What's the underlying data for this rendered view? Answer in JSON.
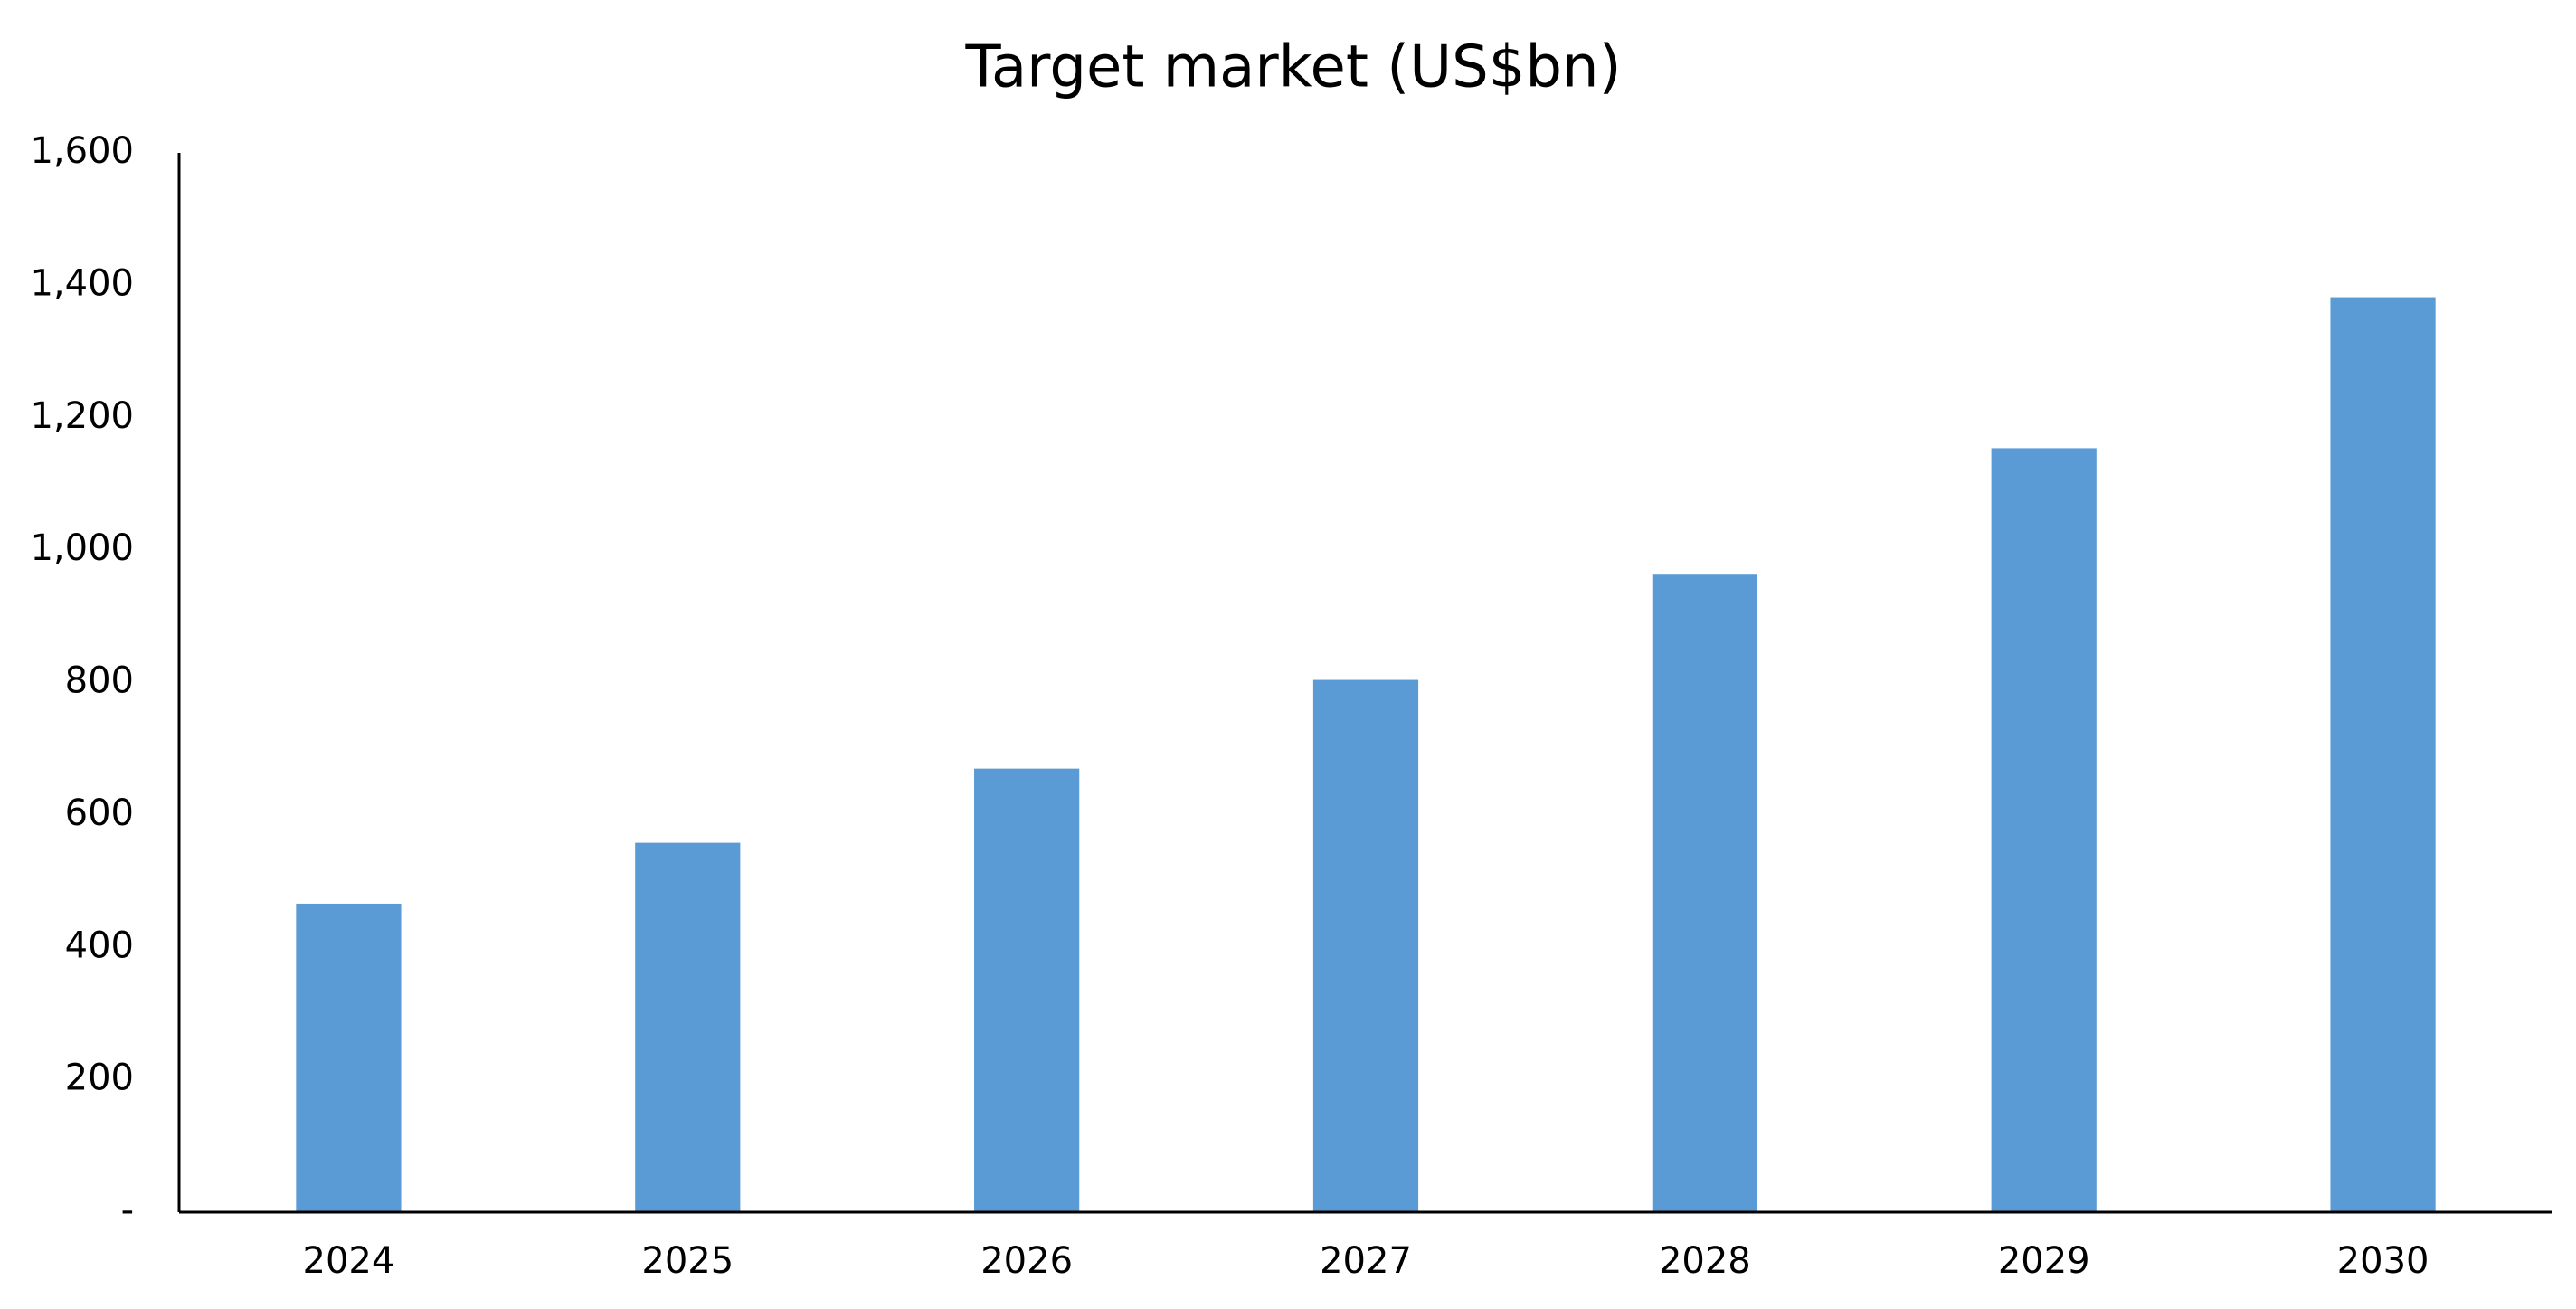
{
  "chart_data": {
    "type": "bar",
    "title": "Target market (US$bn)",
    "categories": [
      "2024",
      "2025",
      "2026",
      "2027",
      "2028",
      "2029",
      "2030"
    ],
    "values": [
      466,
      558,
      670,
      804,
      963,
      1154,
      1382
    ],
    "color": "#5b9bd5",
    "ylim": [
      0,
      1600
    ],
    "yticks": [
      {
        "value": 0,
        "label": "-"
      },
      200,
      400,
      600,
      800,
      {
        "value": 1000,
        "label": "1,000"
      },
      {
        "value": 1200,
        "label": "1,200"
      },
      {
        "value": 1400,
        "label": "1,400"
      },
      {
        "value": 1600,
        "label": "1,600"
      }
    ],
    "grid": false
  }
}
